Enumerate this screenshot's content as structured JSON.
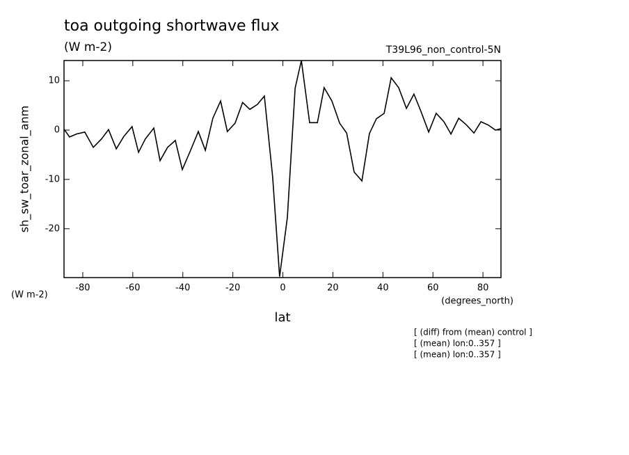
{
  "chart_data": {
    "type": "line",
    "title": "toa outgoing shortwave flux",
    "subtitle": "(W m-2)",
    "dataset_label": "T39L96_non_control-5N",
    "y_label": "sh_sw_toar_zonal_anm",
    "y_units": "(W m-2)",
    "x_label": "lat",
    "x_units": "(degrees_north)",
    "notes": [
      "[ (diff) from (mean) control ]",
      "[ (mean) lon:0..357 ]",
      "[ (mean) lon:0..357 ]"
    ],
    "x": [
      -87.5,
      -85.3,
      -82.5,
      -79.2,
      -75.8,
      -72.5,
      -69.7,
      -66.6,
      -63.6,
      -60.3,
      -57.7,
      -55.0,
      -51.6,
      -49.1,
      -46.1,
      -43.0,
      -40.2,
      -36.9,
      -33.8,
      -31.0,
      -28.0,
      -24.9,
      -22.2,
      -19.1,
      -16.1,
      -13.2,
      -10.2,
      -7.4,
      -4.1,
      -1.3,
      1.8,
      4.9,
      7.4,
      10.7,
      13.8,
      16.5,
      19.6,
      22.7,
      25.5,
      28.5,
      31.6,
      34.6,
      37.4,
      40.5,
      43.3,
      46.3,
      49.4,
      52.4,
      55.2,
      58.3,
      61.3,
      64.4,
      67.2,
      70.3,
      73.3,
      76.4,
      79.2,
      82.2,
      85.0,
      87.2
    ],
    "series": [
      {
        "name": "sh_sw_toar_zonal_anm",
        "color": "#000000",
        "values": [
          0.2,
          -1.4,
          -0.8,
          -0.4,
          -3.5,
          -1.8,
          0.1,
          -3.8,
          -1.3,
          0.7,
          -4.5,
          -1.8,
          0.4,
          -6.2,
          -3.5,
          -2.1,
          -8.0,
          -4.1,
          -0.3,
          -4.1,
          2.4,
          5.9,
          -0.3,
          1.4,
          5.6,
          4.2,
          5.2,
          6.9,
          -9.4,
          -29.7,
          -17.7,
          8.5,
          14.1,
          1.5,
          1.5,
          8.6,
          5.9,
          1.4,
          -0.6,
          -8.5,
          -10.3,
          -0.7,
          2.3,
          3.4,
          10.6,
          8.6,
          4.4,
          7.3,
          3.8,
          -0.4,
          3.4,
          1.7,
          -0.8,
          2.4,
          1.1,
          -0.6,
          1.7,
          1.0,
          0.0,
          0.3
        ]
      }
    ],
    "xlim": [
      -87.5,
      87.2
    ],
    "ylim": [
      -29.9,
      14.1
    ],
    "xticks": [
      -80,
      -60,
      -40,
      -20,
      0,
      20,
      40,
      60,
      80
    ],
    "yticks": [
      -20,
      -10,
      0,
      10
    ],
    "grid": false
  }
}
